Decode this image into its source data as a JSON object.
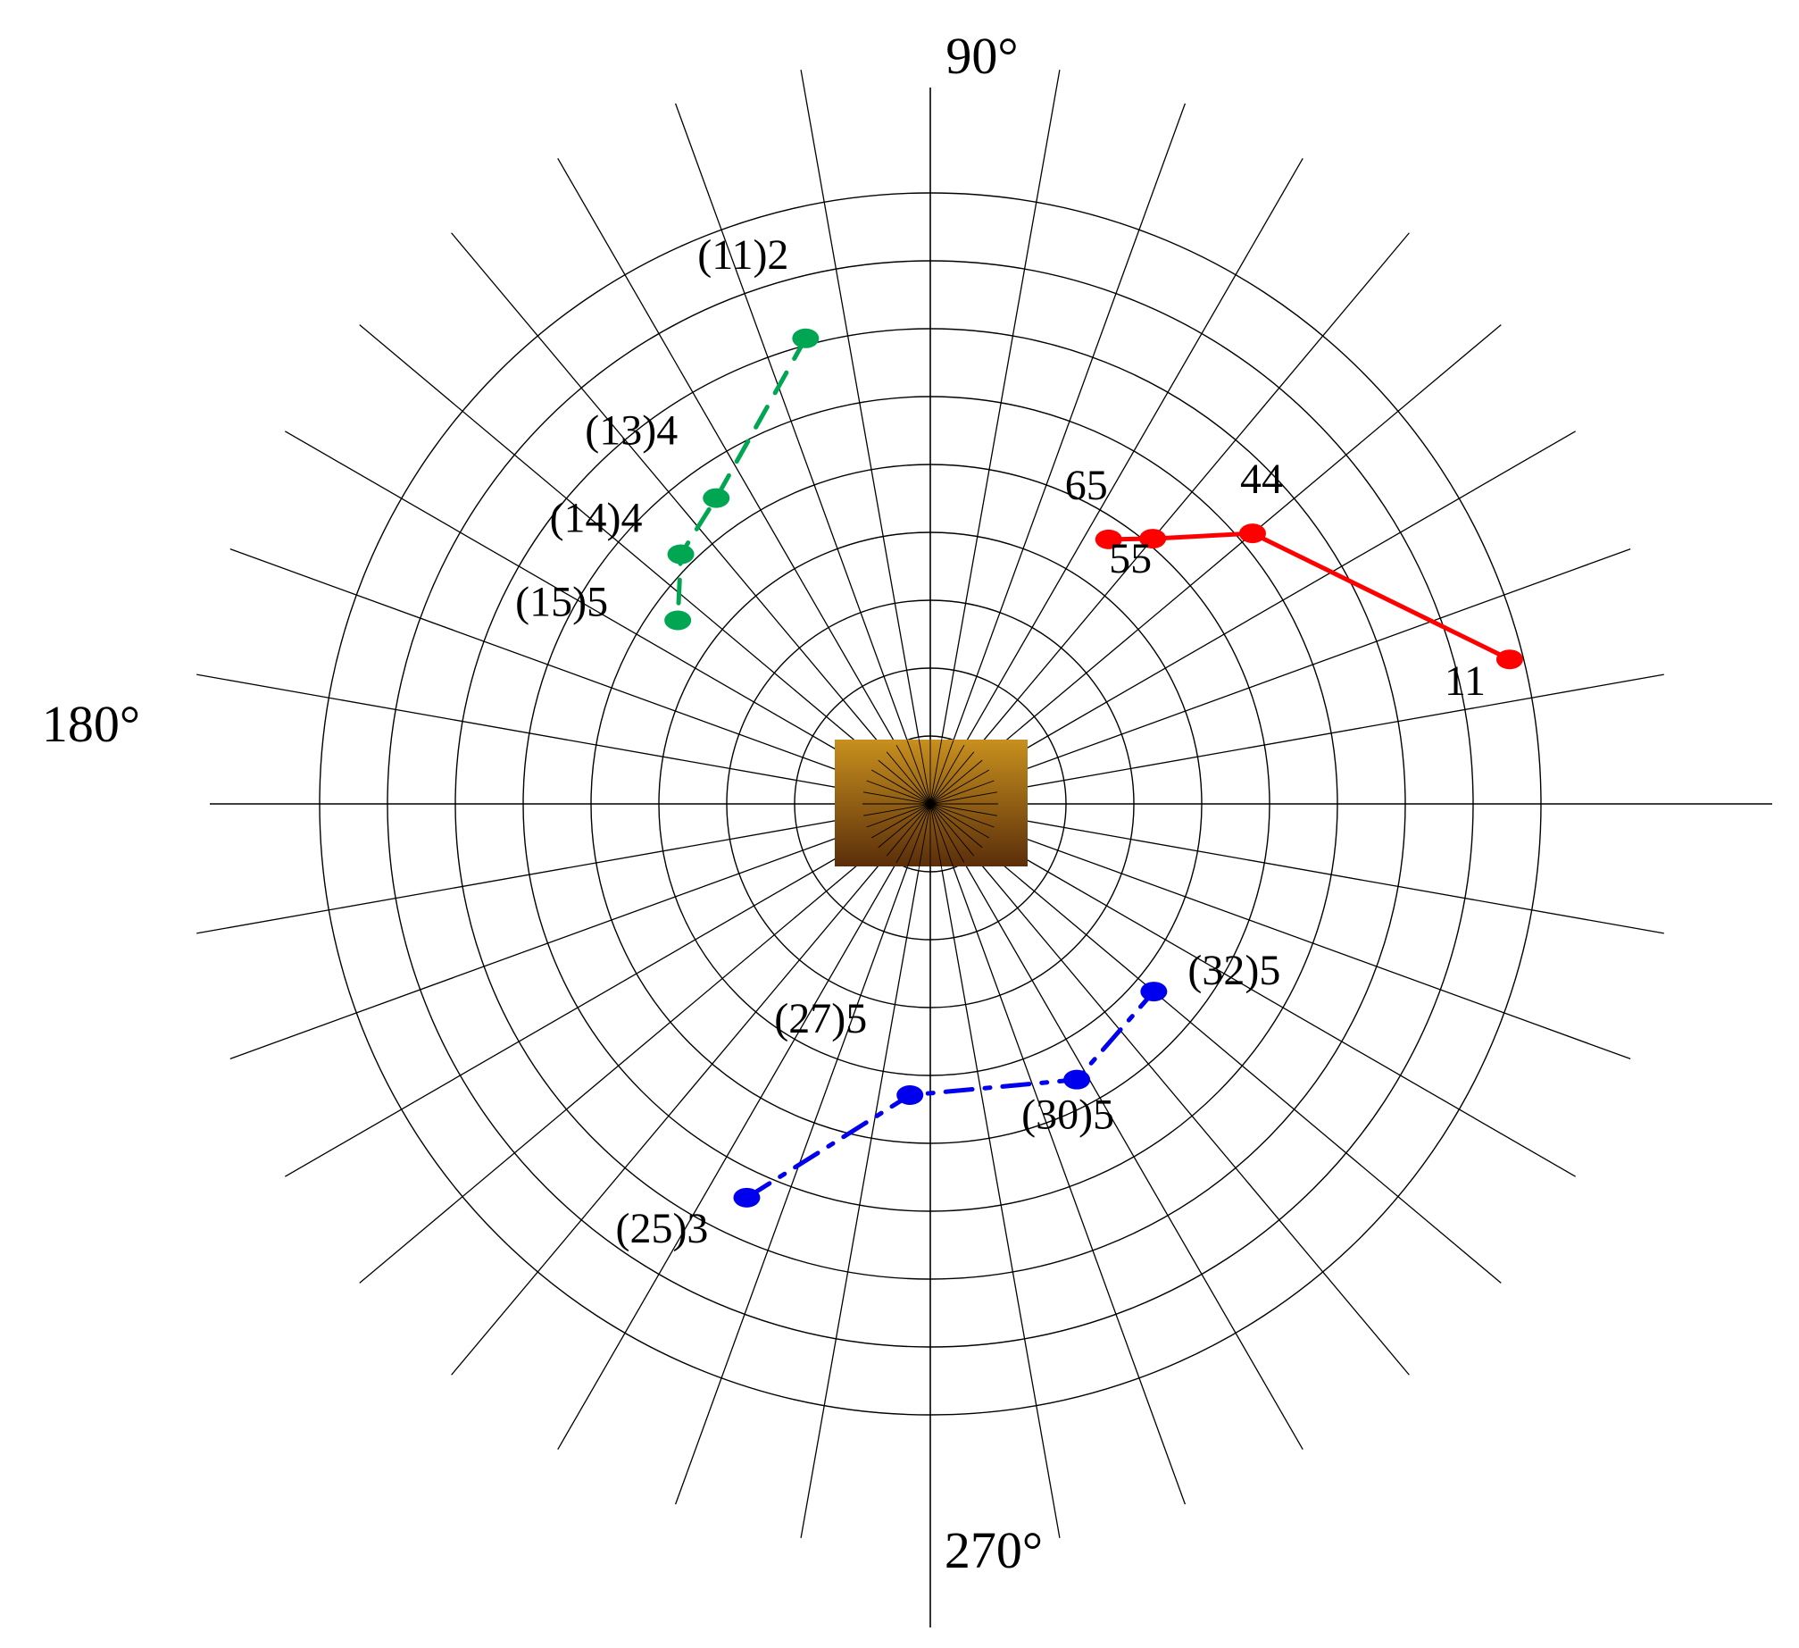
{
  "chart_data": {
    "type": "scatter",
    "coordinate_system": "polar",
    "title": "",
    "angle_axis": {
      "direction": "counterclockwise",
      "zero_direction": "right",
      "labels": [
        {
          "angle": 90,
          "text": "90°"
        },
        {
          "angle": 180,
          "text": "180°"
        },
        {
          "angle": 270,
          "text": "270°"
        }
      ],
      "spoke_spacing_deg": 10
    },
    "radial_axis": {
      "range": [
        0,
        9
      ],
      "rings": [
        1,
        2,
        3,
        4,
        5,
        6,
        7,
        8,
        9
      ],
      "tick_labels_shown": false
    },
    "center_marker": {
      "shape": "rectangle",
      "color_top": "#c8901e",
      "color_bottom": "#5a2e0a"
    },
    "grid": true,
    "legend": "none",
    "series": [
      {
        "color": "#ff0000",
        "line_style": "solid",
        "points": [
          {
            "angle": 14,
            "r": 8.8,
            "label": "11"
          },
          {
            "angle": 40,
            "r": 6.2,
            "label": "44"
          },
          {
            "angle": 50,
            "r": 5.1,
            "label": "55"
          },
          {
            "angle": 56,
            "r": 4.7,
            "label": "65"
          }
        ]
      },
      {
        "color": "#00a651",
        "line_style": "dashed",
        "points": [
          {
            "angle": 105,
            "r": 7.1,
            "label": "(11)2"
          },
          {
            "angle": 125,
            "r": 5.5,
            "label": "(13)4"
          },
          {
            "angle": 135,
            "r": 5.2,
            "label": "(14)4"
          },
          {
            "angle": 144,
            "r": 4.6,
            "label": "(15)5"
          }
        ]
      },
      {
        "color": "#0000ee",
        "line_style": "dash-dot",
        "points": [
          {
            "angle": 245,
            "r": 6.4,
            "label": "(25)3"
          },
          {
            "angle": 266,
            "r": 4.3,
            "label": "(27)5"
          },
          {
            "angle": 298,
            "r": 4.6,
            "label": "(30)5"
          },
          {
            "angle": 320,
            "r": 4.3,
            "label": "(32)5"
          }
        ]
      }
    ]
  }
}
